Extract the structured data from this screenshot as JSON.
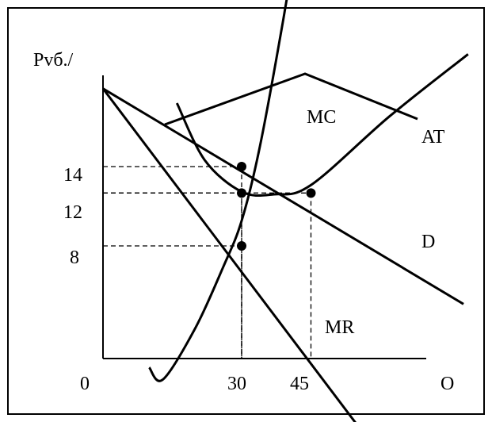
{
  "chart_data": {
    "type": "line",
    "title": "",
    "ylabel": "Рvб./",
    "xlabel": "O",
    "origin_label": "0",
    "x_ticks": [
      {
        "value": 30,
        "label": "30"
      },
      {
        "value": 45,
        "label": "45"
      }
    ],
    "y_ticks": [
      {
        "value": 14,
        "label": "14"
      },
      {
        "value": 12,
        "label": "12"
      },
      {
        "value": 8,
        "label": "8"
      }
    ],
    "series": [
      {
        "name": "D",
        "points": [
          [
            0,
            19.9
          ],
          [
            78,
            3.6
          ]
        ]
      },
      {
        "name": "MR",
        "points": [
          [
            0,
            19.9
          ],
          [
            56,
            -6.0
          ]
        ]
      },
      {
        "name": "MC",
        "points": [
          [
            10,
            -1.2
          ],
          [
            13,
            -2.1
          ],
          [
            20,
            1.8
          ],
          [
            26,
            6.4
          ],
          [
            30,
            9.9
          ],
          [
            34,
            15.6
          ],
          [
            39,
            25.1
          ],
          [
            45,
            37.6
          ]
        ]
      },
      {
        "name": "AT",
        "points": [
          [
            16,
            18.8
          ],
          [
            22,
            14.5
          ],
          [
            30,
            12.1
          ],
          [
            37,
            11.9
          ],
          [
            45,
            12.6
          ],
          [
            62,
            17.8
          ],
          [
            79,
            22.5
          ]
        ]
      }
    ],
    "markers": [
      {
        "x": 30,
        "y": 14
      },
      {
        "x": 30,
        "y": 12
      },
      {
        "x": 45,
        "y": 12
      },
      {
        "x": 30,
        "y": 8
      }
    ],
    "guides": [
      {
        "x": 30,
        "y": 14
      },
      {
        "x": 30,
        "y": 12
      },
      {
        "x": 45,
        "y": 12
      },
      {
        "x": 30,
        "y": 8
      }
    ],
    "grid": false,
    "legend": "none"
  }
}
